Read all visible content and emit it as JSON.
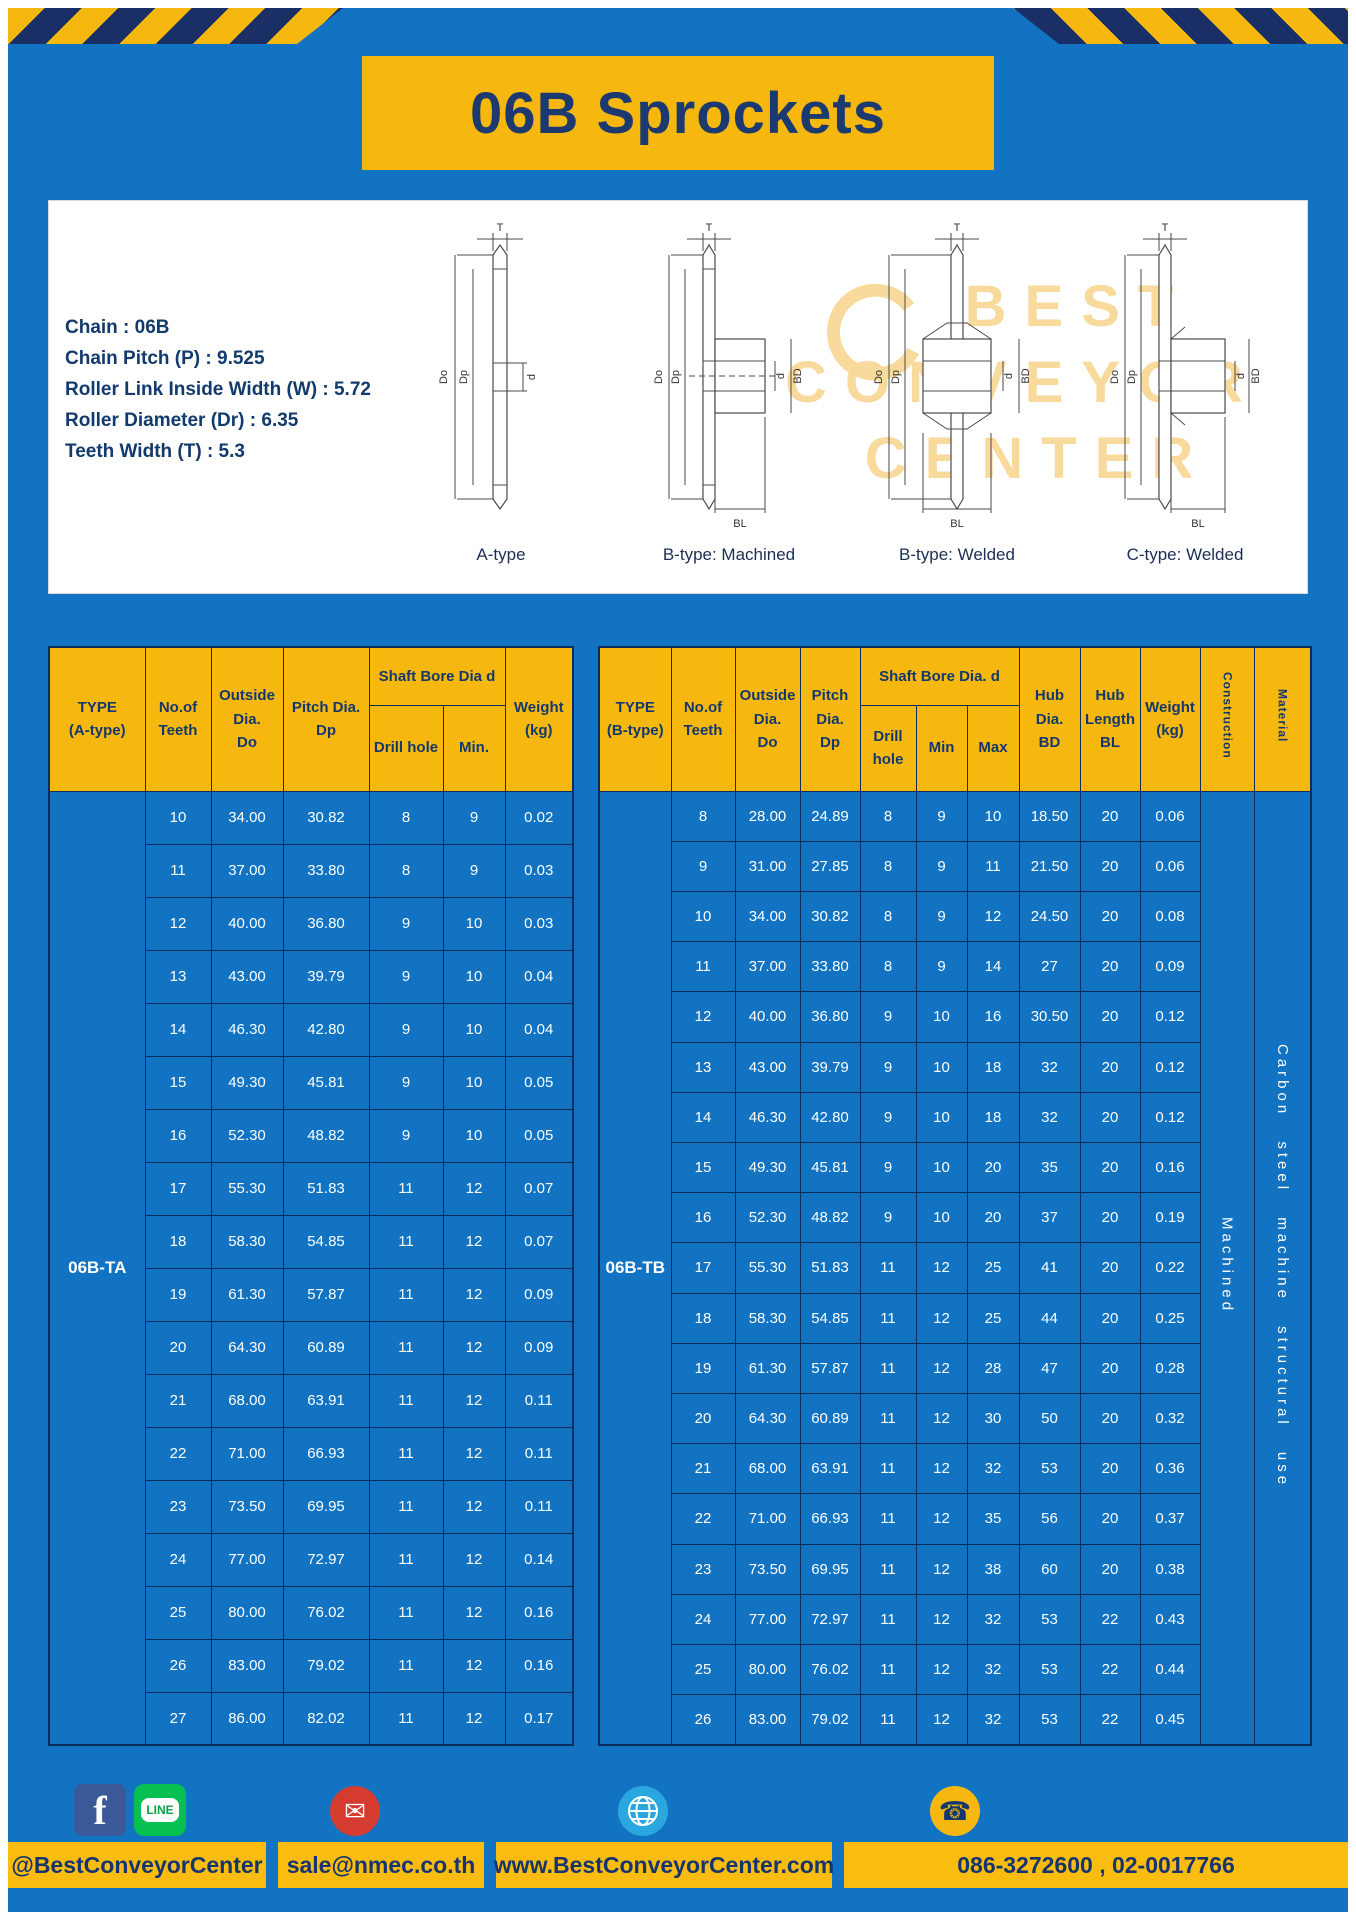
{
  "title": "06B Sprockets",
  "specs": [
    "Chain  :  06B",
    "Chain Pitch (P)  :  9.525",
    "Roller Link Inside Width (W)  :  5.72",
    "Roller Diameter (Dr)  :  6.35",
    "Teeth Width (T)  :  5.3"
  ],
  "watermark": [
    "BEST",
    "CONVEYOR",
    "CENTER"
  ],
  "drawings": {
    "captions": [
      "A-type",
      "B-type: Machined",
      "B-type: Welded",
      "C-type: Welded"
    ],
    "dims": {
      "t": "T",
      "do": "Do",
      "dp": "Dp",
      "d": "d",
      "bd": "BD",
      "bl": "BL"
    }
  },
  "table_a": {
    "header": {
      "type": "TYPE\n(A-type)",
      "teeth": "No.of\nTeeth",
      "outside": "Outside\nDia.\nDo",
      "pitch": "Pitch Dia.\nDp",
      "shaft": "Shaft Bore Dia d",
      "drill": "Drill hole",
      "min": "Min.",
      "weight": "Weight\n(kg)"
    },
    "type": "06B-TA",
    "rows": [
      [
        "10",
        "34.00",
        "30.82",
        "8",
        "9",
        "0.02"
      ],
      [
        "11",
        "37.00",
        "33.80",
        "8",
        "9",
        "0.03"
      ],
      [
        "12",
        "40.00",
        "36.80",
        "9",
        "10",
        "0.03"
      ],
      [
        "13",
        "43.00",
        "39.79",
        "9",
        "10",
        "0.04"
      ],
      [
        "14",
        "46.30",
        "42.80",
        "9",
        "10",
        "0.04"
      ],
      [
        "15",
        "49.30",
        "45.81",
        "9",
        "10",
        "0.05"
      ],
      [
        "16",
        "52.30",
        "48.82",
        "9",
        "10",
        "0.05"
      ],
      [
        "17",
        "55.30",
        "51.83",
        "11",
        "12",
        "0.07"
      ],
      [
        "18",
        "58.30",
        "54.85",
        "11",
        "12",
        "0.07"
      ],
      [
        "19",
        "61.30",
        "57.87",
        "11",
        "12",
        "0.09"
      ],
      [
        "20",
        "64.30",
        "60.89",
        "11",
        "12",
        "0.09"
      ],
      [
        "21",
        "68.00",
        "63.91",
        "11",
        "12",
        "0.11"
      ],
      [
        "22",
        "71.00",
        "66.93",
        "11",
        "12",
        "0.11"
      ],
      [
        "23",
        "73.50",
        "69.95",
        "11",
        "12",
        "0.11"
      ],
      [
        "24",
        "77.00",
        "72.97",
        "11",
        "12",
        "0.14"
      ],
      [
        "25",
        "80.00",
        "76.02",
        "11",
        "12",
        "0.16"
      ],
      [
        "26",
        "83.00",
        "79.02",
        "11",
        "12",
        "0.16"
      ],
      [
        "27",
        "86.00",
        "82.02",
        "11",
        "12",
        "0.17"
      ]
    ]
  },
  "table_b": {
    "header": {
      "type": "TYPE\n(B-type)",
      "teeth": "No.of\nTeeth",
      "outside": "Outside\nDia.\nDo",
      "pitch": "Pitch\nDia.\nDp",
      "shaft": "Shaft Bore Dia.  d",
      "drill": "Drill hole",
      "min": "Min",
      "max": "Max",
      "hub_dia": "Hub\nDia.\nBD",
      "hub_len": "Hub\nLength\nBL",
      "weight": "Weight\n(kg)",
      "construction": "Construction",
      "material": "Material"
    },
    "type": "06B-TB",
    "construction": "Machined",
    "material": "Carbon steel machine structural use",
    "rows": [
      [
        "8",
        "28.00",
        "24.89",
        "8",
        "9",
        "10",
        "18.50",
        "20",
        "0.06"
      ],
      [
        "9",
        "31.00",
        "27.85",
        "8",
        "9",
        "11",
        "21.50",
        "20",
        "0.06"
      ],
      [
        "10",
        "34.00",
        "30.82",
        "8",
        "9",
        "12",
        "24.50",
        "20",
        "0.08"
      ],
      [
        "11",
        "37.00",
        "33.80",
        "8",
        "9",
        "14",
        "27",
        "20",
        "0.09"
      ],
      [
        "12",
        "40.00",
        "36.80",
        "9",
        "10",
        "16",
        "30.50",
        "20",
        "0.12"
      ],
      [
        "13",
        "43.00",
        "39.79",
        "9",
        "10",
        "18",
        "32",
        "20",
        "0.12"
      ],
      [
        "14",
        "46.30",
        "42.80",
        "9",
        "10",
        "18",
        "32",
        "20",
        "0.12"
      ],
      [
        "15",
        "49.30",
        "45.81",
        "9",
        "10",
        "20",
        "35",
        "20",
        "0.16"
      ],
      [
        "16",
        "52.30",
        "48.82",
        "9",
        "10",
        "20",
        "37",
        "20",
        "0.19"
      ],
      [
        "17",
        "55.30",
        "51.83",
        "11",
        "12",
        "25",
        "41",
        "20",
        "0.22"
      ],
      [
        "18",
        "58.30",
        "54.85",
        "11",
        "12",
        "25",
        "44",
        "20",
        "0.25"
      ],
      [
        "19",
        "61.30",
        "57.87",
        "11",
        "12",
        "28",
        "47",
        "20",
        "0.28"
      ],
      [
        "20",
        "64.30",
        "60.89",
        "11",
        "12",
        "30",
        "50",
        "20",
        "0.32"
      ],
      [
        "21",
        "68.00",
        "63.91",
        "11",
        "12",
        "32",
        "53",
        "20",
        "0.36"
      ],
      [
        "22",
        "71.00",
        "66.93",
        "11",
        "12",
        "35",
        "56",
        "20",
        "0.37"
      ],
      [
        "23",
        "73.50",
        "69.95",
        "11",
        "12",
        "38",
        "60",
        "20",
        "0.38"
      ],
      [
        "24",
        "77.00",
        "72.97",
        "11",
        "12",
        "32",
        "53",
        "22",
        "0.43"
      ],
      [
        "25",
        "80.00",
        "76.02",
        "11",
        "12",
        "32",
        "53",
        "22",
        "0.44"
      ],
      [
        "26",
        "83.00",
        "79.02",
        "11",
        "12",
        "32",
        "53",
        "22",
        "0.45"
      ]
    ]
  },
  "footer": {
    "segments": [
      "@BestConveyorCenter",
      "sale@nmec.co.th",
      "www.BestConveyorCenter.com",
      "086-3272600 , 02-0017766"
    ],
    "icons": {
      "facebook": "f",
      "line": "LINE",
      "mail": "✉",
      "globe": "globe-shape",
      "phone": "☎"
    }
  }
}
